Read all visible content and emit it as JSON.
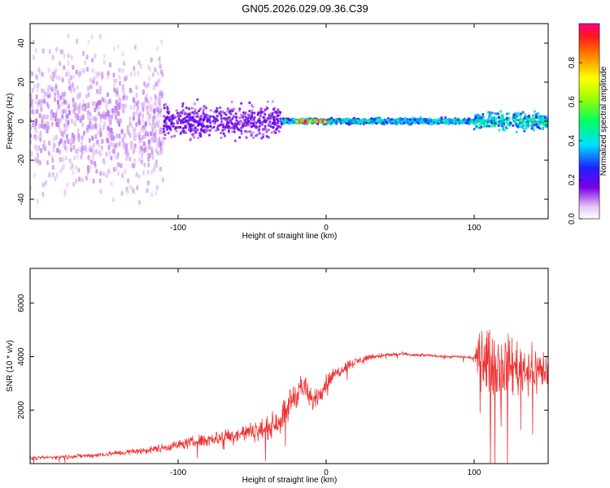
{
  "title": "GN05.2026.029.09.36.C39",
  "chart_data": [
    {
      "type": "heatmap",
      "title": "",
      "xlabel": "Height of straight line (km)",
      "ylabel": "Frequency (Hz)",
      "xlim": [
        -200,
        150
      ],
      "ylim": [
        -50,
        50
      ],
      "xticks": [
        -100,
        0,
        100
      ],
      "yticks": [
        -40,
        -20,
        0,
        20,
        40
      ],
      "grid": false,
      "description_of_data": [
        {
          "x_from": -200,
          "x_to": -110,
          "freq_spread": 50,
          "amplitude": 0.1
        },
        {
          "x_from": -110,
          "x_to": -30,
          "freq_spread": 12,
          "amplitude": 0.2
        },
        {
          "x_from": -30,
          "x_to": 100,
          "freq_spread": 2,
          "amplitude": 0.45
        },
        {
          "x_from": -20,
          "x_to": 0,
          "freq_spread": 1,
          "amplitude": 0.95
        },
        {
          "x_from": 100,
          "x_to": 150,
          "freq_spread": 6,
          "amplitude": 0.5
        }
      ],
      "colorbar": {
        "label": "Normalized spectral amplitude",
        "ticks": [
          "0.0",
          "0.2",
          "0.4",
          "0.6",
          "0.8"
        ],
        "tick_values": [
          0.0,
          0.2,
          0.4,
          0.6,
          0.8
        ],
        "range": [
          0,
          1
        ]
      }
    },
    {
      "type": "line",
      "title": "",
      "xlabel": "Height of straight line (km)",
      "ylabel": "SNR (10 * v/v)",
      "xlim": [
        -200,
        150
      ],
      "ylim": [
        0,
        7300
      ],
      "xticks": [
        -100,
        0,
        100
      ],
      "yticks": [
        2000,
        4000,
        6000
      ],
      "grid": false,
      "series": [
        {
          "name": "SNR",
          "color": "#ee3333",
          "x": [
            -200,
            -180,
            -160,
            -140,
            -120,
            -100,
            -80,
            -60,
            -40,
            -30,
            -25,
            -20,
            -15,
            -10,
            -5,
            0,
            5,
            10,
            15,
            20,
            30,
            40,
            50,
            60,
            70,
            80,
            90,
            100,
            105,
            110,
            120,
            130,
            140,
            150
          ],
          "y": [
            200,
            250,
            300,
            400,
            500,
            700,
            900,
            1100,
            1300,
            1700,
            2200,
            2700,
            2900,
            2300,
            2600,
            3000,
            3300,
            3500,
            3700,
            3800,
            4000,
            4050,
            4100,
            4050,
            4050,
            4000,
            4000,
            3950,
            4000,
            3800,
            3700,
            3600,
            3500,
            3500
          ],
          "noise": [
            80,
            80,
            100,
            120,
            150,
            200,
            300,
            350,
            450,
            600,
            700,
            700,
            500,
            500,
            400,
            400,
            300,
            250,
            200,
            200,
            120,
            100,
            80,
            70,
            60,
            60,
            60,
            60,
            1400,
            1400,
            1300,
            1200,
            1000,
            900
          ]
        }
      ]
    }
  ]
}
